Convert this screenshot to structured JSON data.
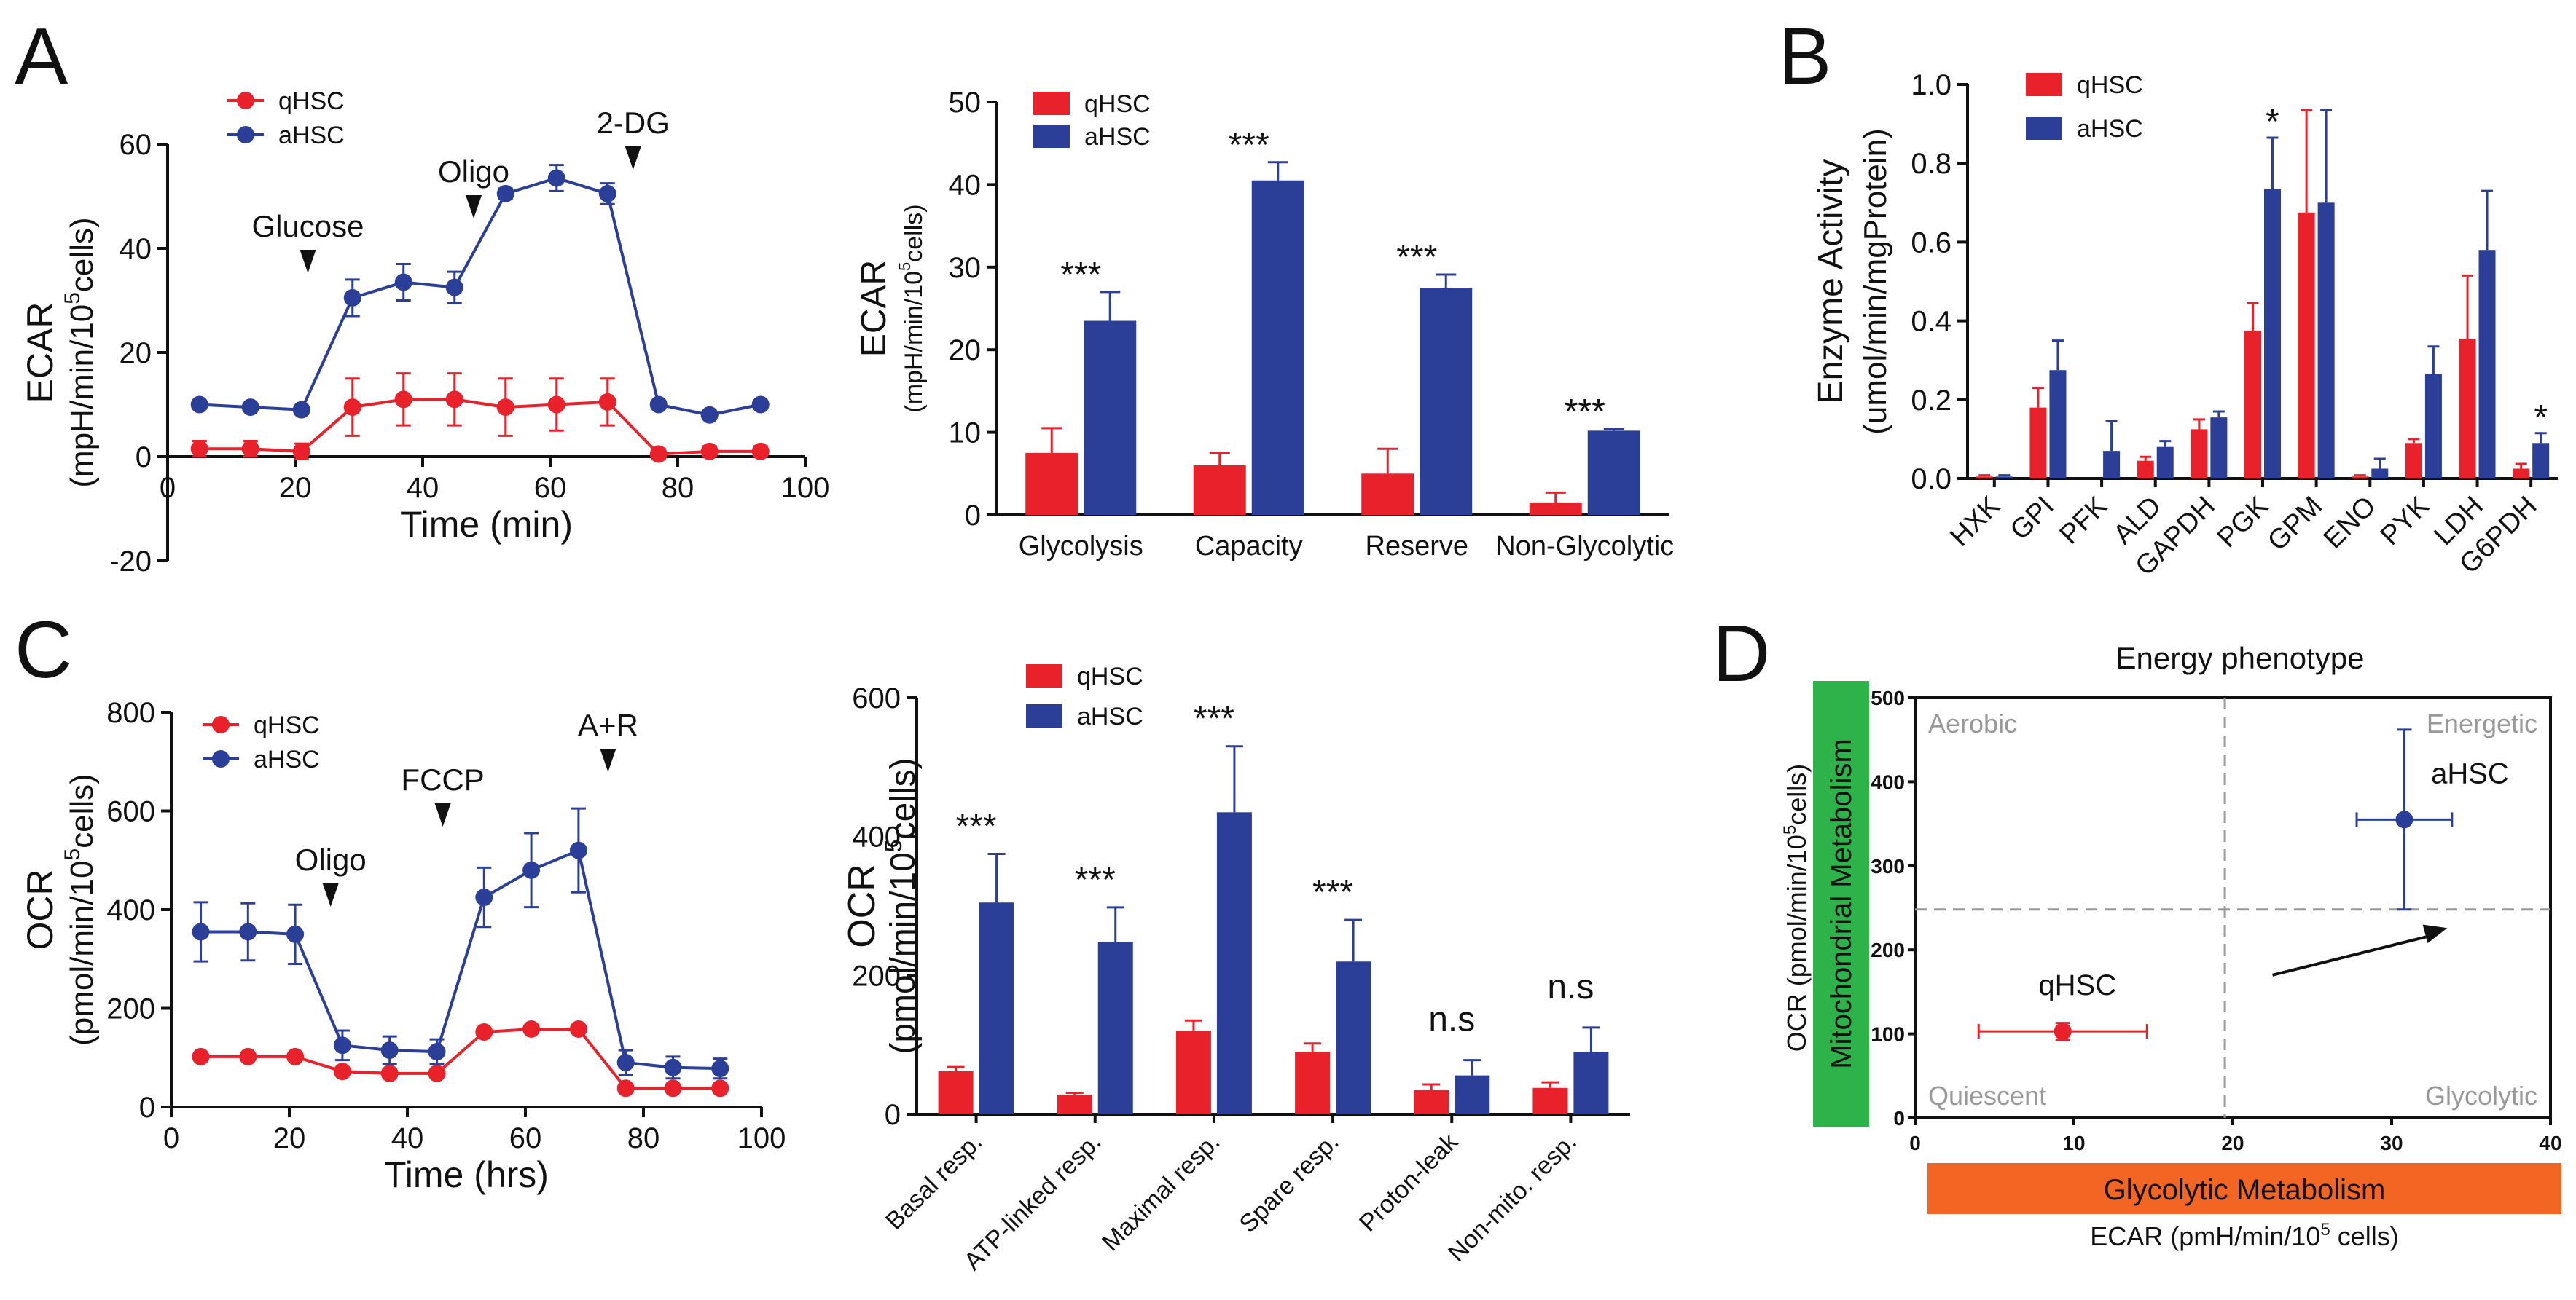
{
  "colors": {
    "qHSC": "#e8212b",
    "aHSC": "#2b3f98",
    "guide": "#999999",
    "green": "#2db34a",
    "orange": "#f26522"
  },
  "panels": [
    "A",
    "B",
    "C",
    "D"
  ],
  "chart_data": [
    {
      "id": "A1",
      "type": "line",
      "title": "",
      "xlabel": "Time (min)",
      "ylabel": "ECAR",
      "ylabel2": "(mpH/min/10",
      "ylabel_sup": "5",
      "ylabel3": "cells)",
      "xlim": [
        0,
        100
      ],
      "ylim": [
        -20,
        60
      ],
      "xticks": [
        0,
        20,
        40,
        60,
        80,
        100
      ],
      "yticks": [
        -20,
        0,
        20,
        40,
        60
      ],
      "annotations": [
        {
          "text": "Glucose",
          "x": 22
        },
        {
          "text": "Oligo",
          "x": 48
        },
        {
          "text": "2-DG",
          "x": 73
        }
      ],
      "legend": [
        "qHSC",
        "aHSC"
      ],
      "series": [
        {
          "name": "qHSC",
          "x": [
            5,
            13,
            21,
            29,
            37,
            45,
            53,
            61,
            69,
            77,
            85,
            93
          ],
          "values": [
            1.5,
            1.5,
            1.0,
            9.5,
            11,
            11,
            9.5,
            10,
            10.5,
            0.5,
            1,
            1
          ],
          "errors": [
            1.5,
            1.5,
            1.5,
            5.5,
            5,
            5,
            5.5,
            5,
            4.5,
            1,
            1,
            1
          ]
        },
        {
          "name": "aHSC",
          "x": [
            5,
            13,
            21,
            29,
            37,
            45,
            53,
            61,
            69,
            77,
            85,
            93
          ],
          "values": [
            10,
            9.5,
            9,
            30.5,
            33.5,
            32.5,
            50.5,
            53.5,
            50.5,
            10,
            8,
            10
          ],
          "errors": [
            0.8,
            0.8,
            0.8,
            3.5,
            3.5,
            3,
            1,
            2.5,
            2,
            0.8,
            0.8,
            0.8
          ]
        }
      ]
    },
    {
      "id": "A2",
      "type": "bar",
      "ylabel": "ECAR",
      "ylabel2": "(mpH/min/10",
      "ylabel_sup": "5",
      "ylabel3": "cells)",
      "ylim": [
        0,
        50
      ],
      "yticks": [
        0,
        10,
        20,
        30,
        40,
        50
      ],
      "categories": [
        "Glycolysis",
        "Capacity",
        "Reserve",
        "Non-Glycolytic"
      ],
      "significance": [
        "***",
        "***",
        "***",
        "***"
      ],
      "legend": [
        "qHSC",
        "aHSC"
      ],
      "series": [
        {
          "name": "qHSC",
          "values": [
            7.5,
            6,
            5,
            1.5
          ],
          "errors": [
            3,
            1.5,
            3,
            1.2
          ]
        },
        {
          "name": "aHSC",
          "values": [
            23.5,
            40.5,
            27.5,
            10.2
          ],
          "errors": [
            3.5,
            2.2,
            1.6,
            0.2
          ]
        }
      ]
    },
    {
      "id": "B",
      "type": "bar",
      "ylabel": "Enzyme Activity",
      "ylabel2": "(umol/min/mgProtein)",
      "ylim": [
        0,
        1.0
      ],
      "yticks": [
        0.0,
        0.2,
        0.4,
        0.6,
        0.8,
        1.0
      ],
      "ytick_labels": [
        "0.0",
        "0.2",
        "0.4",
        "0.6",
        "0.8",
        "1.0"
      ],
      "categories": [
        "HXK",
        "GPI",
        "PFK",
        "ALD",
        "GAPDH",
        "PGK",
        "GPM",
        "ENO",
        "PYK",
        "LDH",
        "G6PDH"
      ],
      "significance": [
        "",
        "",
        "",
        "",
        "",
        "*",
        "",
        "",
        "",
        "",
        "*"
      ],
      "legend": [
        "qHSC",
        "aHSC"
      ],
      "series": [
        {
          "name": "qHSC",
          "values": [
            0.005,
            0.18,
            0.0,
            0.045,
            0.125,
            0.375,
            0.675,
            0.005,
            0.09,
            0.355,
            0.025
          ],
          "errors": [
            0.003,
            0.05,
            0.0,
            0.01,
            0.025,
            0.07,
            0.26,
            0.003,
            0.01,
            0.16,
            0.012
          ]
        },
        {
          "name": "aHSC",
          "values": [
            0.005,
            0.275,
            0.07,
            0.08,
            0.155,
            0.735,
            0.7,
            0.025,
            0.265,
            0.58,
            0.09
          ],
          "errors": [
            0.003,
            0.075,
            0.075,
            0.015,
            0.015,
            0.13,
            0.235,
            0.025,
            0.07,
            0.15,
            0.025
          ]
        }
      ]
    },
    {
      "id": "C1",
      "type": "line",
      "xlabel": "Time (hrs)",
      "ylabel": "OCR",
      "ylabel2": "(pmol/min/10",
      "ylabel_sup": "5",
      "ylabel3": "cells)",
      "xlim": [
        0,
        100
      ],
      "ylim": [
        0,
        800
      ],
      "xticks": [
        0,
        20,
        40,
        60,
        80,
        100
      ],
      "yticks": [
        0,
        200,
        400,
        600,
        800
      ],
      "annotations": [
        {
          "text": "Oligo",
          "x": 27
        },
        {
          "text": "FCCP",
          "x": 46
        },
        {
          "text": "A+R",
          "x": 74
        }
      ],
      "legend": [
        "qHSC",
        "aHSC"
      ],
      "series": [
        {
          "name": "qHSC",
          "x": [
            5,
            13,
            21,
            29,
            37,
            45,
            53,
            61,
            69,
            77,
            85,
            93
          ],
          "values": [
            102,
            102,
            102,
            72,
            68,
            68,
            152,
            158,
            158,
            38,
            38,
            38
          ],
          "errors": [
            6,
            6,
            6,
            8,
            8,
            8,
            6,
            6,
            6,
            8,
            8,
            8
          ]
        },
        {
          "name": "aHSC",
          "x": [
            5,
            13,
            21,
            29,
            37,
            45,
            53,
            61,
            69,
            77,
            85,
            93
          ],
          "values": [
            355,
            355,
            350,
            125,
            115,
            112,
            425,
            480,
            520,
            90,
            80,
            78
          ],
          "errors": [
            60,
            58,
            60,
            30,
            28,
            25,
            60,
            75,
            85,
            25,
            22,
            20
          ]
        }
      ]
    },
    {
      "id": "C2",
      "type": "bar",
      "ylabel": "OCR",
      "ylabel2": "(pmol/min/10",
      "ylabel_sup": "5",
      "ylabel3": "cells)",
      "ylim": [
        0,
        600
      ],
      "yticks": [
        0,
        200,
        400,
        600
      ],
      "categories": [
        "Basal resp.",
        "ATP-linked resp.",
        "Maximal resp.",
        "Spare resp.",
        "Proton-leak",
        "Non-mito. resp."
      ],
      "significance": [
        "***",
        "***",
        "***",
        "***",
        "n.s",
        "n.s"
      ],
      "legend": [
        "qHSC",
        "aHSC"
      ],
      "series": [
        {
          "name": "qHSC",
          "values": [
            62,
            28,
            120,
            90,
            35,
            38
          ],
          "errors": [
            6,
            3,
            15,
            12,
            8,
            8
          ]
        },
        {
          "name": "aHSC",
          "values": [
            305,
            248,
            435,
            220,
            56,
            90
          ],
          "errors": [
            70,
            50,
            95,
            60,
            22,
            35
          ]
        }
      ]
    },
    {
      "id": "D",
      "type": "scatter",
      "title": "Energy phenotype",
      "xlabel": "ECAR (pmH/min/10",
      "xlabel_sup": "5",
      "xlabel2": " cells)",
      "ylabel": "OCR (pmol/min/10",
      "ylabel_sup": "5",
      "ylabel2": "cells)",
      "xlim": [
        0,
        40
      ],
      "ylim": [
        0,
        500
      ],
      "xticks": [
        0,
        10,
        20,
        30,
        40
      ],
      "yticks": [
        0,
        100,
        200,
        300,
        400,
        500
      ],
      "quadrants": [
        "Aerobic",
        "Energetic",
        "Quiescent",
        "Glycolytic"
      ],
      "guides": {
        "x": 19.5,
        "y": 248
      },
      "side_labels": {
        "y": "Mitochondrial Metabolism",
        "x": "Glycolytic Metabolism"
      },
      "points": [
        {
          "name": "qHSC",
          "x": 9.3,
          "y": 103,
          "xerr": 5.3,
          "yerr": 10
        },
        {
          "name": "aHSC",
          "x": 30.8,
          "y": 355,
          "xerr": 3.0,
          "yerr": 107
        }
      ],
      "arrow": {
        "from": [
          22.5,
          170
        ],
        "to": [
          33.5,
          226
        ]
      }
    }
  ]
}
